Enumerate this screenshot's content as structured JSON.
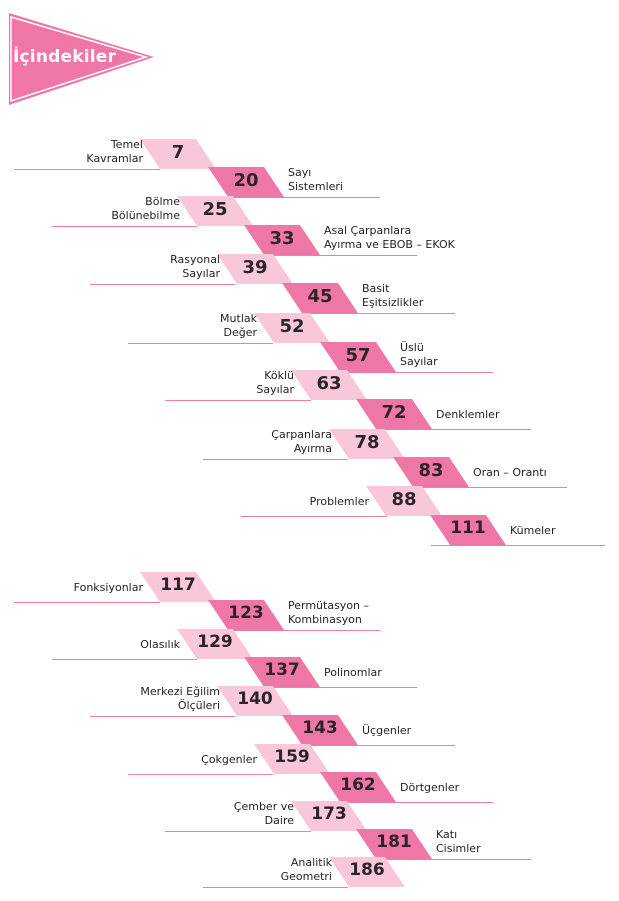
{
  "header": {
    "title": "İçindekiler",
    "color": "#ee77a8"
  },
  "colors": {
    "dark_badge": "#ee77a8",
    "light_badge": "#f8c7da",
    "rule": "#f07aa8"
  },
  "entries": [
    {
      "page": "7",
      "lines": [
        "Temel",
        "Kavramlar"
      ],
      "side": "left"
    },
    {
      "page": "20",
      "lines": [
        "Sayı",
        "Sistemleri"
      ],
      "side": "right"
    },
    {
      "page": "25",
      "lines": [
        "Bölme",
        "Bölünebilme"
      ],
      "side": "left"
    },
    {
      "page": "33",
      "lines": [
        "Asal Çarpanlara",
        "Ayırma ve EBOB – EKOK"
      ],
      "side": "right"
    },
    {
      "page": "39",
      "lines": [
        "Rasyonal",
        "Sayılar"
      ],
      "side": "left"
    },
    {
      "page": "45",
      "lines": [
        "Basit",
        "Eşitsizlikler"
      ],
      "side": "right"
    },
    {
      "page": "52",
      "lines": [
        "Mutlak",
        "Değer"
      ],
      "side": "left"
    },
    {
      "page": "57",
      "lines": [
        "Üslü",
        "Sayılar"
      ],
      "side": "right"
    },
    {
      "page": "63",
      "lines": [
        "Köklü",
        "Sayılar"
      ],
      "side": "left"
    },
    {
      "page": "72",
      "lines": [
        "Denklemler"
      ],
      "side": "right"
    },
    {
      "page": "78",
      "lines": [
        "Çarpanlara",
        "Ayırma"
      ],
      "side": "left"
    },
    {
      "page": "83",
      "lines": [
        "Oran – Orantı"
      ],
      "side": "right"
    },
    {
      "page": "88",
      "lines": [
        "Problemler"
      ],
      "side": "left"
    },
    {
      "page": "111",
      "lines": [
        "Kümeler"
      ],
      "side": "right"
    },
    {
      "page": "117",
      "lines": [
        "Fonksiyonlar"
      ],
      "side": "left"
    },
    {
      "page": "123",
      "lines": [
        "Permütasyon –",
        "Kombinasyon"
      ],
      "side": "right"
    },
    {
      "page": "129",
      "lines": [
        "Olasılık"
      ],
      "side": "left"
    },
    {
      "page": "137",
      "lines": [
        "Polinomlar"
      ],
      "side": "right"
    },
    {
      "page": "140",
      "lines": [
        "Merkezi Eğilim",
        "Ölçüleri"
      ],
      "side": "left"
    },
    {
      "page": "143",
      "lines": [
        "Üçgenler"
      ],
      "side": "right"
    },
    {
      "page": "159",
      "lines": [
        "Çokgenler"
      ],
      "side": "left"
    },
    {
      "page": "162",
      "lines": [
        "Dörtgenler"
      ],
      "side": "right"
    },
    {
      "page": "173",
      "lines": [
        "Çember ve",
        "Daire"
      ],
      "side": "left"
    },
    {
      "page": "181",
      "lines": [
        "Katı",
        "Cisimler"
      ],
      "side": "right"
    },
    {
      "page": "186",
      "lines": [
        "Analitik",
        "Geometri"
      ],
      "side": "left"
    }
  ]
}
